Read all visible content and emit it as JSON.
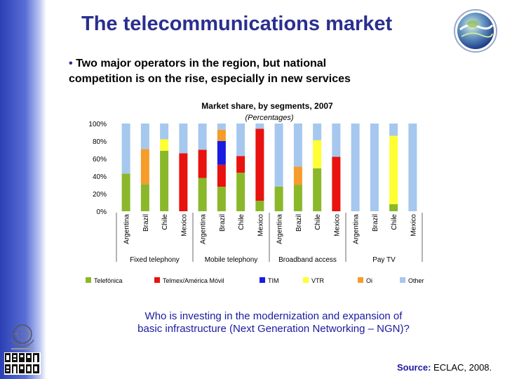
{
  "slide": {
    "title": "The telecommunications market",
    "bullet_symbol": "•",
    "bullet_text_line1": "Two major operators in the region, but national",
    "bullet_text_line2": "competition is on the rise, especially in new services",
    "question_line1": "Who is investing in the modernization and expansion of",
    "question_line2": "basic infrastructure (Next Generation Networking – NGN)?",
    "source_label": "Source:",
    "source_text": "ECLAC, 2008."
  },
  "colors": {
    "title": "#2a2f8f",
    "question": "#1a1aa0"
  },
  "chart_data": {
    "type": "bar",
    "stacked": true,
    "percent_stacked": true,
    "title": "Market share, by segments, 2007",
    "subtitle": "(Percentages)",
    "ylim": [
      0,
      100
    ],
    "yticks": [
      "0%",
      "20%",
      "40%",
      "60%",
      "80%",
      "100%"
    ],
    "grid": false,
    "categories": [
      "Argentina",
      "Brazil",
      "Chile",
      "Mexico",
      "Argentina",
      "Brazil",
      "Chile",
      "Mexico",
      "Argentina",
      "Brazil",
      "Chile",
      "Mexico",
      "Argentina",
      "Brazil",
      "Chile",
      "Mexico"
    ],
    "groups": [
      {
        "label": "Fixed telephony",
        "start": 0,
        "end": 3
      },
      {
        "label": "Mobile telephony",
        "start": 4,
        "end": 7
      },
      {
        "label": "Broadband access",
        "start": 8,
        "end": 11
      },
      {
        "label": "Pay TV",
        "start": 12,
        "end": 15
      }
    ],
    "series": [
      {
        "name": "Telefónica",
        "color": "#8ab82a",
        "values": [
          43,
          31,
          69,
          0,
          38,
          28,
          44,
          12,
          28,
          30,
          49,
          0,
          0,
          0,
          8,
          0
        ]
      },
      {
        "name": "Telmex/América Móvil",
        "color": "#e8120f",
        "values": [
          0,
          0,
          0,
          66,
          32,
          25,
          19,
          82,
          0,
          0,
          0,
          62,
          0,
          0,
          0,
          0
        ]
      },
      {
        "name": "TIM",
        "color": "#1a1ae0",
        "values": [
          0,
          0,
          0,
          0,
          0,
          27,
          0,
          0,
          0,
          0,
          0,
          0,
          0,
          0,
          0,
          0
        ]
      },
      {
        "name": "VTR",
        "color": "#ffff33",
        "values": [
          0,
          0,
          13,
          0,
          0,
          0,
          0,
          0,
          0,
          0,
          32,
          0,
          0,
          0,
          78,
          0
        ]
      },
      {
        "name": "Oi",
        "color": "#f59c2a",
        "values": [
          0,
          40,
          0,
          0,
          0,
          13,
          0,
          0,
          0,
          21,
          0,
          0,
          0,
          0,
          0,
          0
        ]
      },
      {
        "name": "Other",
        "color": "#a6c8ee",
        "values": [
          57,
          29,
          18,
          34,
          30,
          7,
          37,
          6,
          72,
          49,
          19,
          38,
          100,
          100,
          14,
          100
        ]
      }
    ],
    "legend_position": "bottom"
  }
}
